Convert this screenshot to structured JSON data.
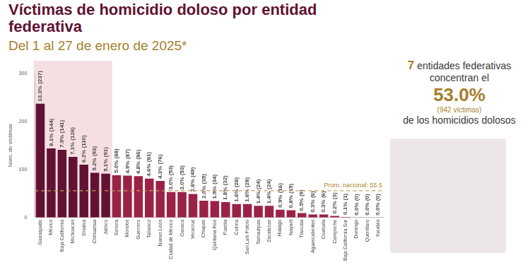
{
  "chart_data": {
    "type": "bar",
    "title": "Víctimas de homicidio doloso por entidad federativa",
    "subtitle": "Del 1 al 27 de enero de 2025*",
    "y_label": "Núm. de víctimas",
    "categories": [
      "Guanajuato",
      "México",
      "Baja California",
      "Michoacán",
      "Sinaloa",
      "Chihuahua",
      "Jalisco",
      "Sonora",
      "Morelos",
      "Guerrero",
      "Tabasco",
      "Nuevo León",
      "Ciudad de México",
      "Oaxaca",
      "Veracruz",
      "Chiapas",
      "Quintana Roo",
      "Puebla",
      "Colima",
      "San Luis Potosí",
      "Tamaulipas",
      "Zacatecas",
      "Hidalgo",
      "Nayarit",
      "Tlaxcala",
      "Aguascalientes",
      "Coahuila",
      "Campeche",
      "Baja California Sur",
      "Durango",
      "Querétaro",
      "Yucatán"
    ],
    "values": [
      237,
      144,
      141,
      126,
      110,
      93,
      91,
      88,
      87,
      86,
      81,
      76,
      53,
      53,
      49,
      35,
      34,
      32,
      28,
      28,
      24,
      24,
      16,
      15,
      9,
      6,
      6,
      3,
      1,
      0,
      0,
      0
    ],
    "value_labels": [
      "13.3% (237)",
      "8.1% (144)",
      "7.9% (141)",
      "7.1% (126)",
      "6.2% (110)",
      "5.2% (93)",
      "5.1% (91)",
      "5.0% (88)",
      "4.9% (87)",
      "4.8% (86)",
      "4.6% (81)",
      "4.3% (76)",
      "3.0% (53)",
      "3.0% (53)",
      "2.8% (49)",
      "2.0% (35)",
      "1.9% (34)",
      "1.8% (32)",
      "1.6% (28)",
      "1.6% (28)",
      "1.4% (24)",
      "1.4% (24)",
      "0.9% (16)",
      "0.8% (15)",
      "0.5% (9)",
      "0.3% (6)",
      "0.3% (6)",
      "0.2% (3)",
      "0.1% (1)",
      "0.0% (0)",
      "0.0% (0)",
      "0.0% (0)"
    ],
    "colors": [
      "#611232",
      "#611232",
      "#611232",
      "#611232",
      "#611232",
      "#611232",
      "#611232",
      "#9b2247",
      "#9b2247",
      "#9b2247",
      "#9b2247",
      "#9b2247",
      "#9b2247",
      "#9b2247",
      "#9b2247",
      "#9b2247",
      "#9b2247",
      "#9b2247",
      "#9b2247",
      "#9b2247",
      "#9b2247",
      "#9b2247",
      "#9b2247",
      "#9b2247",
      "#9b2247",
      "#9b2247",
      "#9b2247",
      "#9b2247",
      "#9b2247",
      "#9b2247",
      "#9b2247",
      "#9b2247"
    ],
    "reference_line": {
      "value": 55.5,
      "label": "Prom. nacional: 55.5"
    },
    "ylim": [
      0,
      300
    ],
    "yticks": [
      0,
      100,
      200,
      300
    ],
    "grid": false,
    "data_labels": true
  },
  "panel": {
    "count": "7",
    "line1": "entidades federativas",
    "line2": "concentran el",
    "percent": "53.0%",
    "victims": "(942 víctimas)",
    "line3": "de los homicidios dolosos"
  }
}
